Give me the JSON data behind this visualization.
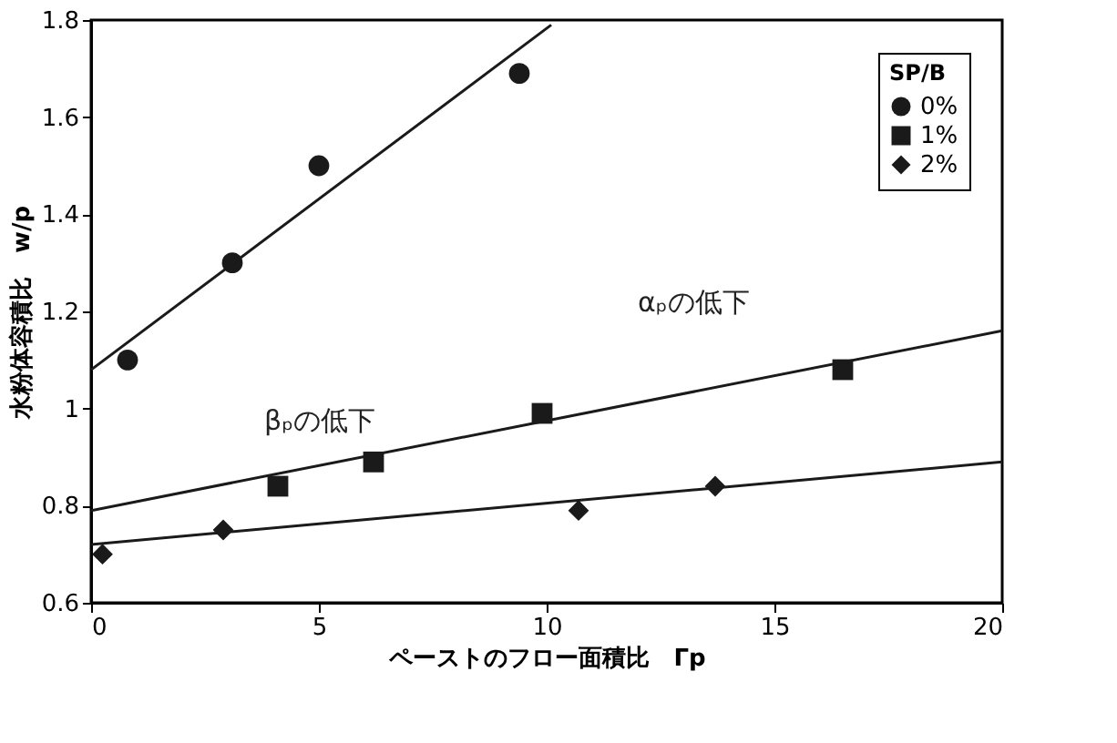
{
  "chart_data": {
    "type": "scatter",
    "xlabel": "ペーストのフロー面積比　Γp",
    "ylabel": "水粉体容積比　w/p",
    "legend_title": "SP/B",
    "legend": "top right",
    "grid": false,
    "xlim": [
      0,
      20
    ],
    "xticks": [
      0,
      5,
      10,
      15,
      20
    ],
    "ylim": [
      0.6,
      1.8
    ],
    "yticks": [
      0.6,
      0.8,
      1,
      1.2,
      1.4,
      1.6,
      1.8
    ],
    "series": [
      {
        "name": "0%",
        "color": "#1a1a1a",
        "marker": "circle",
        "x": [
          0.8,
          3.1,
          5.0,
          9.4
        ],
        "values": [
          1.1,
          1.3,
          1.5,
          1.69
        ]
      },
      {
        "name": "1%",
        "color": "#1a1a1a",
        "marker": "square",
        "x": [
          4.1,
          6.2,
          9.9,
          16.5
        ],
        "values": [
          0.84,
          0.89,
          0.99,
          1.08
        ]
      },
      {
        "name": "2%",
        "color": "#1a1a1a",
        "marker": "diamond",
        "x": [
          0.25,
          2.9,
          10.7,
          13.7
        ],
        "values": [
          0.7,
          0.75,
          0.79,
          0.84
        ]
      },
      {
        "type": "line",
        "color": "#1a1a1a",
        "x": [
          0,
          10.1
        ],
        "values": [
          1.08,
          1.79
        ]
      },
      {
        "type": "line",
        "color": "#1a1a1a",
        "x": [
          0,
          20
        ],
        "values": [
          0.79,
          1.16
        ]
      },
      {
        "type": "line",
        "color": "#1a1a1a",
        "x": [
          0,
          20
        ],
        "values": [
          0.72,
          0.89
        ]
      }
    ],
    "annotations": [
      "αₚの低下",
      "βₚの低下"
    ]
  }
}
